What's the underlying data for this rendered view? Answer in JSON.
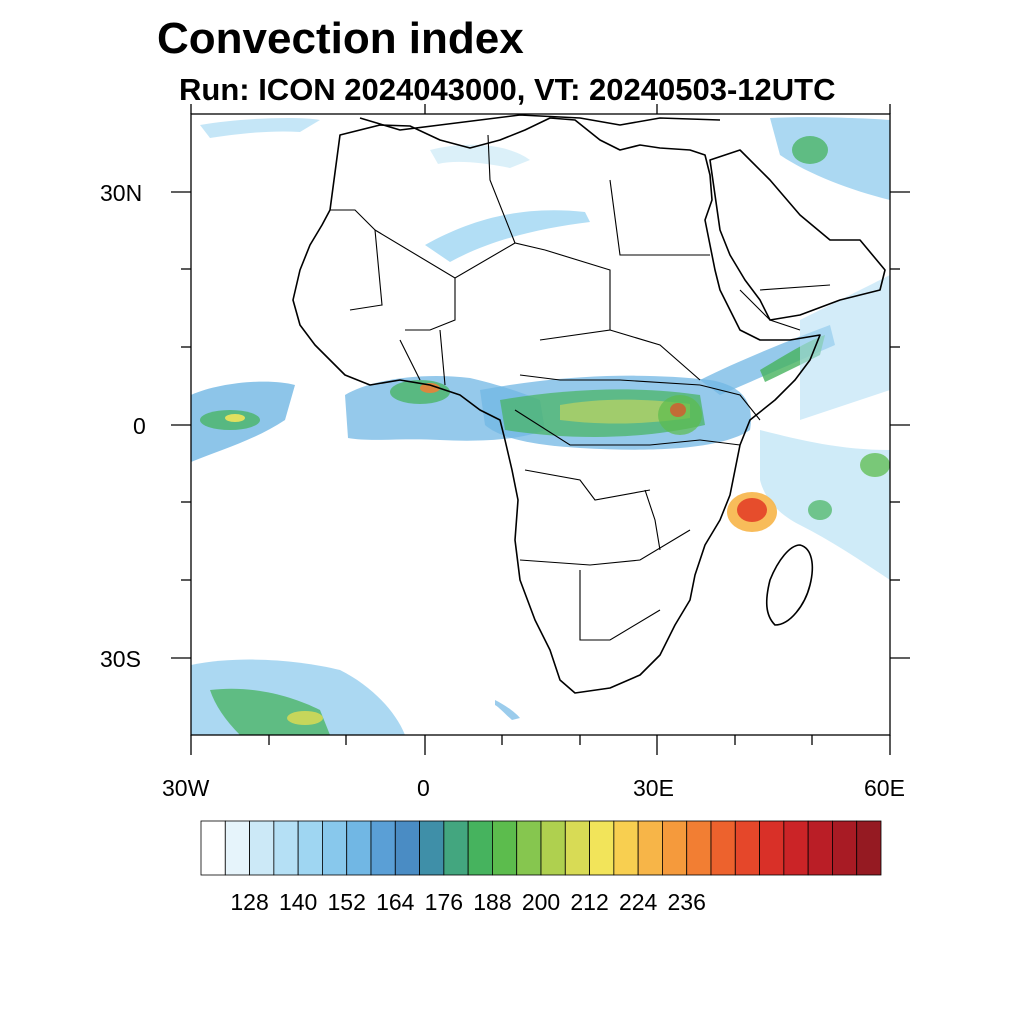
{
  "title": "Convection index",
  "subtitle": "Run: ICON 2024043000,  VT: 20240503-12UTC",
  "axes": {
    "x_ticks": [
      "30W",
      "0",
      "30E",
      "60E"
    ],
    "y_ticks": [
      "30N",
      "0",
      "30S"
    ]
  },
  "colorbar": {
    "labels": [
      "128",
      "140",
      "152",
      "164",
      "176",
      "188",
      "200",
      "212",
      "224",
      "236"
    ],
    "colors": [
      "#ffffff",
      "#e6f4fb",
      "#cce9f7",
      "#b5e0f5",
      "#9fd6f2",
      "#88c8ec",
      "#71b7e4",
      "#5a9fd6",
      "#4a8cc4",
      "#3f8fa8",
      "#43a67f",
      "#46b35e",
      "#5cbc4d",
      "#86c64f",
      "#afd04f",
      "#d8db55",
      "#f2e45a",
      "#f8cf50",
      "#f7b548",
      "#f59a3c",
      "#f27e33",
      "#ed622d",
      "#e5472a",
      "#d93028",
      "#cb2427",
      "#ba1e26",
      "#a81b24",
      "#951a22"
    ]
  },
  "legend_values": {
    "min_labeled": 128,
    "max_labeled": 236,
    "step": 12
  }
}
